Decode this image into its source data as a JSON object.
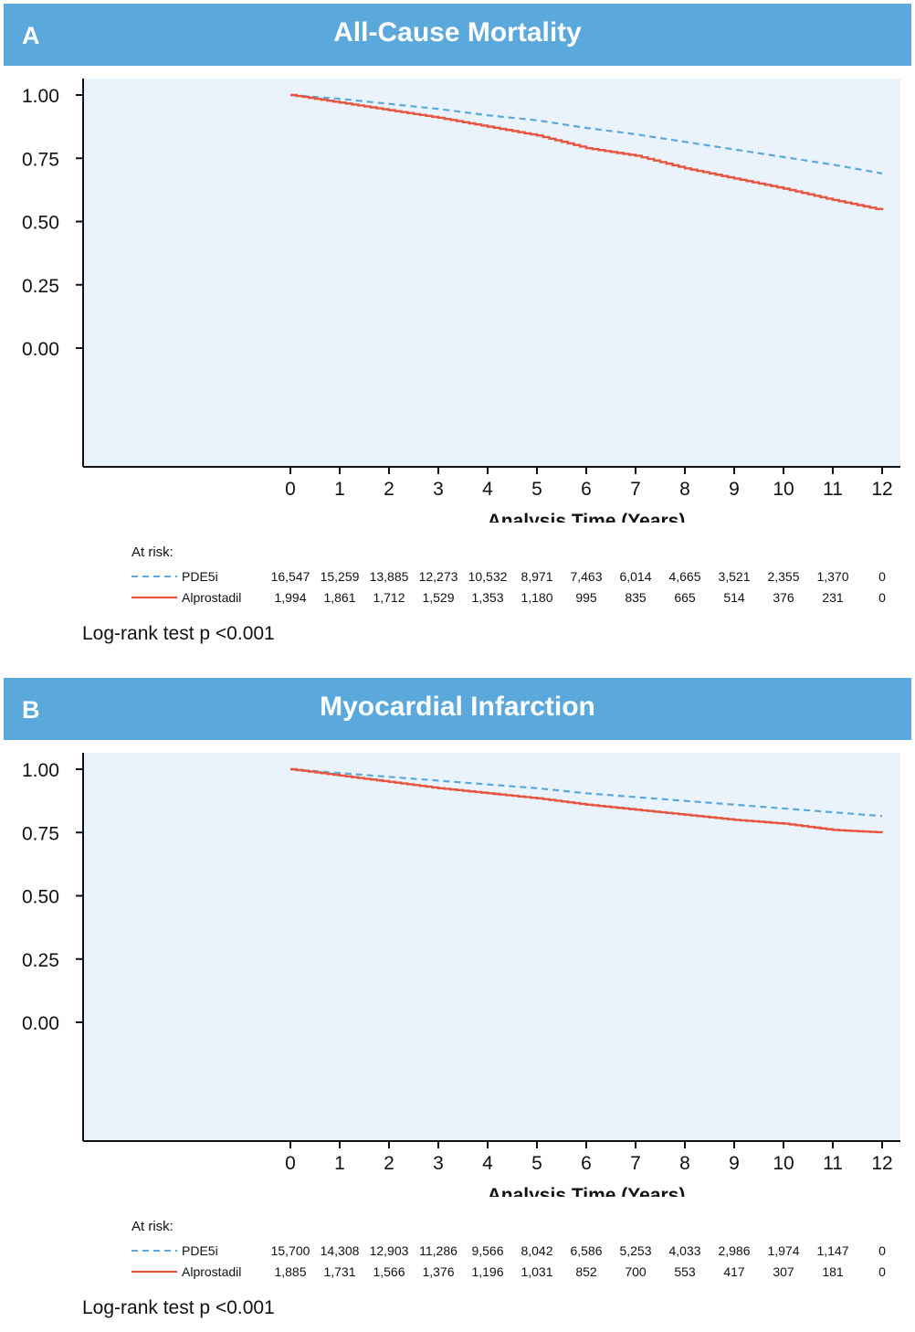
{
  "colors": {
    "banner": "#5ba8dc",
    "plot_bg": "#eaf2fb",
    "pde5i": "#5ba8dc",
    "alprostadil": "#e8553e"
  },
  "panels": [
    {
      "letter": "A",
      "title": "All-Cause Mortality",
      "at_risk_label": "At risk:",
      "groups": [
        {
          "name": "PDE5i",
          "counts": [
            "16,547",
            "15,259",
            "13,885",
            "12,273",
            "10,532",
            "8,971",
            "7,463",
            "6,014",
            "4,665",
            "3,521",
            "2,355",
            "1,370",
            "0"
          ]
        },
        {
          "name": "Alprostadil",
          "counts": [
            "1,994",
            "1,861",
            "1,712",
            "1,529",
            "1,353",
            "1,180",
            "995",
            "835",
            "665",
            "514",
            "376",
            "231",
            "0"
          ]
        }
      ],
      "logrank": "Log-rank test p <0.001"
    },
    {
      "letter": "B",
      "title": "Myocardial Infarction",
      "at_risk_label": "At risk:",
      "groups": [
        {
          "name": "PDE5i",
          "counts": [
            "15,700",
            "14,308",
            "12,903",
            "11,286",
            "9,566",
            "8,042",
            "6,586",
            "5,253",
            "4,033",
            "2,986",
            "1,974",
            "1,147",
            "0"
          ]
        },
        {
          "name": "Alprostadil",
          "counts": [
            "1,885",
            "1,731",
            "1,566",
            "1,376",
            "1,196",
            "1,031",
            "852",
            "700",
            "553",
            "417",
            "307",
            "181",
            "0"
          ]
        }
      ],
      "logrank": "Log-rank test p <0.001"
    }
  ],
  "chart_data": [
    {
      "type": "line",
      "title": "All-Cause Mortality",
      "xlabel": "Analysis Time (Years)",
      "ylabel": "",
      "xlim": [
        0,
        12
      ],
      "ylim": [
        0,
        1
      ],
      "x_ticks": [
        "0",
        "1",
        "2",
        "3",
        "4",
        "5",
        "6",
        "7",
        "8",
        "9",
        "10",
        "11",
        "12"
      ],
      "y_ticks": [
        "1.00",
        "0.75",
        "0.50",
        "0.25",
        "0.00"
      ],
      "grid": false,
      "series": [
        {
          "name": "PDE5i",
          "style": "dashed",
          "x": [
            0,
            1,
            2,
            3,
            4,
            5,
            6,
            7,
            8,
            9,
            10,
            11,
            12
          ],
          "y": [
            1.0,
            0.985,
            0.965,
            0.945,
            0.92,
            0.9,
            0.87,
            0.845,
            0.815,
            0.785,
            0.755,
            0.725,
            0.69
          ]
        },
        {
          "name": "Alprostadil",
          "style": "step",
          "x": [
            0,
            1,
            2,
            3,
            4,
            5,
            6,
            7,
            8,
            9,
            10,
            11,
            12
          ],
          "y": [
            1.0,
            0.97,
            0.94,
            0.91,
            0.875,
            0.84,
            0.79,
            0.76,
            0.71,
            0.67,
            0.63,
            0.585,
            0.545
          ]
        }
      ]
    },
    {
      "type": "line",
      "title": "Myocardial Infarction",
      "xlabel": "Analysis Time (Years)",
      "ylabel": "",
      "xlim": [
        0,
        12
      ],
      "ylim": [
        0,
        1
      ],
      "x_ticks": [
        "0",
        "1",
        "2",
        "3",
        "4",
        "5",
        "6",
        "7",
        "8",
        "9",
        "10",
        "11",
        "12"
      ],
      "y_ticks": [
        "1.00",
        "0.75",
        "0.50",
        "0.25",
        "0.00"
      ],
      "grid": false,
      "series": [
        {
          "name": "PDE5i",
          "style": "dashed",
          "x": [
            0,
            1,
            2,
            3,
            4,
            5,
            6,
            7,
            8,
            9,
            10,
            11,
            12
          ],
          "y": [
            1.0,
            0.985,
            0.97,
            0.955,
            0.94,
            0.925,
            0.905,
            0.89,
            0.875,
            0.86,
            0.845,
            0.83,
            0.815
          ]
        },
        {
          "name": "Alprostadil",
          "style": "step",
          "x": [
            0,
            1,
            2,
            3,
            4,
            5,
            6,
            7,
            8,
            9,
            10,
            11,
            12
          ],
          "y": [
            1.0,
            0.975,
            0.95,
            0.925,
            0.905,
            0.885,
            0.86,
            0.84,
            0.82,
            0.8,
            0.785,
            0.76,
            0.75
          ]
        }
      ]
    }
  ]
}
